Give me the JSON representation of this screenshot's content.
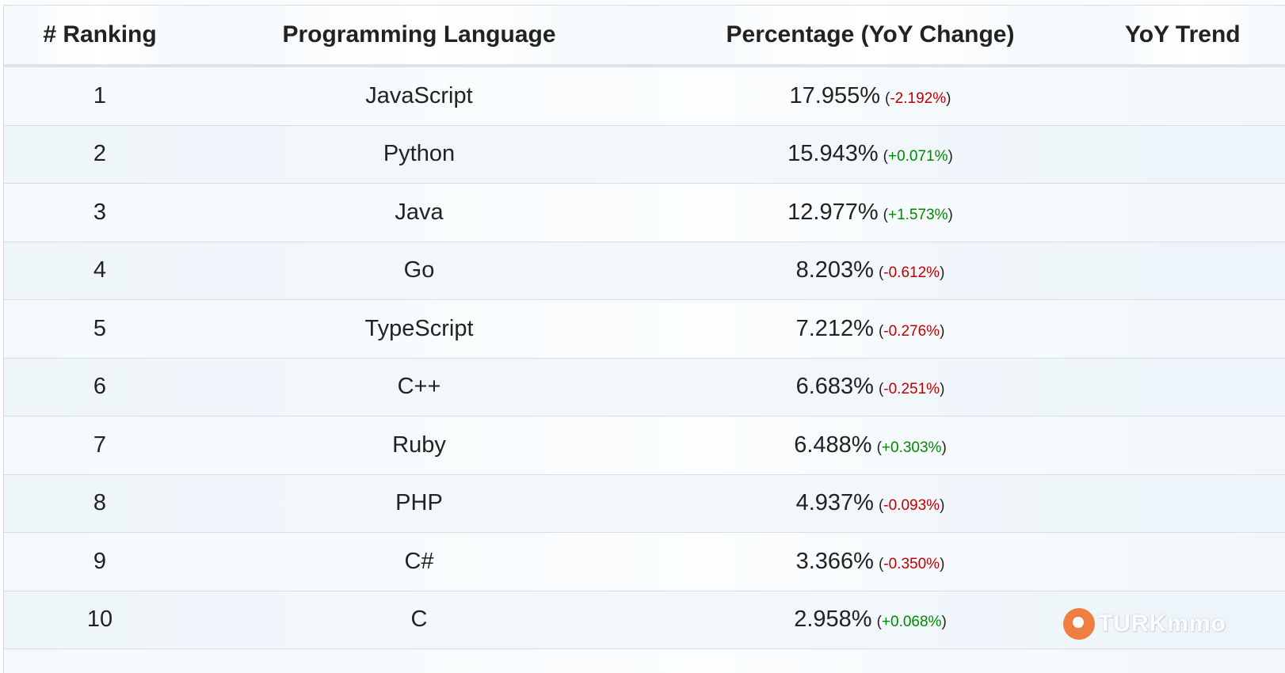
{
  "table": {
    "headers": {
      "rank": "# Ranking",
      "language": "Programming Language",
      "percentage": "Percentage (YoY Change)",
      "trend": "YoY Trend"
    },
    "rows": [
      {
        "rank": "1",
        "language": "JavaScript",
        "percent": "17.955%",
        "change": "-2.192%",
        "direction": "down"
      },
      {
        "rank": "2",
        "language": "Python",
        "percent": "15.943%",
        "change": "+0.071%",
        "direction": "up"
      },
      {
        "rank": "3",
        "language": "Java",
        "percent": "12.977%",
        "change": "+1.573%",
        "direction": "up"
      },
      {
        "rank": "4",
        "language": "Go",
        "percent": "8.203%",
        "change": "-0.612%",
        "direction": "down"
      },
      {
        "rank": "5",
        "language": "TypeScript",
        "percent": "7.212%",
        "change": "-0.276%",
        "direction": "down"
      },
      {
        "rank": "6",
        "language": "C++",
        "percent": "6.683%",
        "change": "-0.251%",
        "direction": "down"
      },
      {
        "rank": "7",
        "language": "Ruby",
        "percent": "6.488%",
        "change": "+0.303%",
        "direction": "up"
      },
      {
        "rank": "8",
        "language": "PHP",
        "percent": "4.937%",
        "change": "-0.093%",
        "direction": "down"
      },
      {
        "rank": "9",
        "language": "C#",
        "percent": "3.366%",
        "change": "-0.350%",
        "direction": "down"
      },
      {
        "rank": "10",
        "language": "C",
        "percent": "2.958%",
        "change": "+0.068%",
        "direction": "up"
      }
    ]
  },
  "watermark": {
    "text": "TURKmmo",
    "icon": "turkmmo-logo-icon"
  },
  "colors": {
    "negative": "#c00000",
    "positive": "#008800",
    "text": "#222222"
  }
}
